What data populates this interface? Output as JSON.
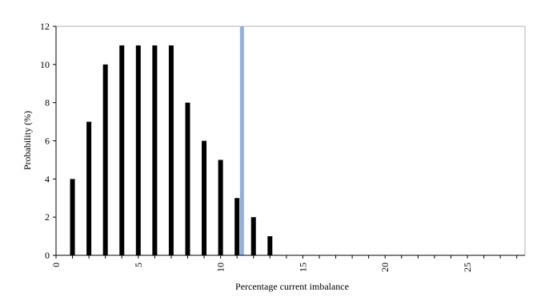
{
  "chart_data": {
    "type": "bar",
    "x": [
      1,
      2,
      3,
      4,
      5,
      6,
      7,
      8,
      9,
      10,
      11,
      12,
      13
    ],
    "values": [
      4,
      7,
      10,
      11,
      11,
      11,
      11,
      8,
      6,
      5,
      3,
      2,
      1
    ],
    "xlabel": "Percentage current imbalance",
    "ylabel": "Probability (%)",
    "xlim": [
      0,
      28.5
    ],
    "ylim": [
      0,
      12
    ],
    "xticks": [
      "0",
      "5",
      "10",
      "15",
      "20",
      "25"
    ],
    "yticks": [
      "0",
      "2",
      "4",
      "6",
      "8",
      "10",
      "12"
    ],
    "xtick_values": [
      0,
      5,
      10,
      15,
      20,
      25
    ],
    "ytick_values": [
      0,
      2,
      4,
      6,
      8,
      10,
      12
    ],
    "minor_xticks": true,
    "grid": false,
    "legend": "none",
    "reference_line": {
      "x": 11.3
    },
    "colors": {
      "bar": "#000000",
      "reference_line": "#8fb0e6",
      "axis": "#000000",
      "frame": "#b0b0b0"
    }
  }
}
